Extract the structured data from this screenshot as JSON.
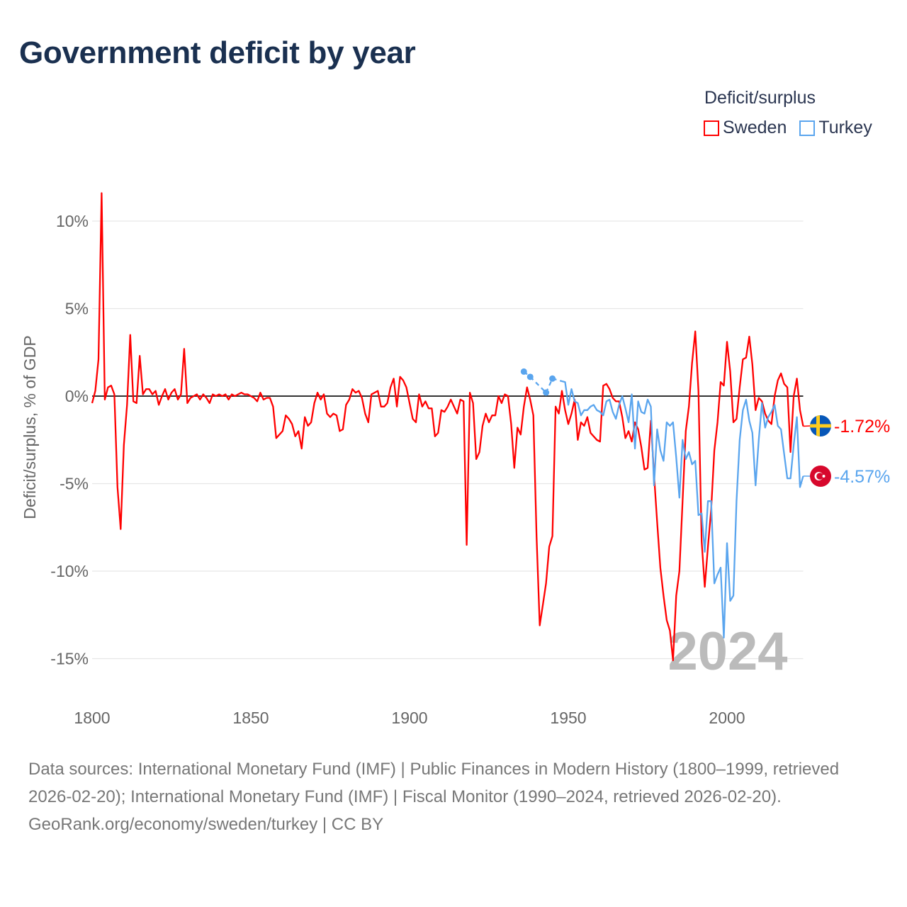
{
  "title": "Government deficit by year",
  "legend": {
    "title": "Deficit/surplus",
    "items": [
      {
        "name": "Sweden",
        "color": "#ff0000"
      },
      {
        "name": "Turkey",
        "color": "#5aa5ee"
      }
    ]
  },
  "footer": {
    "sources": "Data sources: International Monetary Fund (IMF) | Public Finances in Modern History (1800–1999, retrieved 2026-02-20); International Monetary Fund (IMF) | Fiscal Monitor (1990–2024, retrieved 2026-02-20).",
    "credit": "GeoRank.org/economy/sweden/turkey | CC BY"
  },
  "chart_data": {
    "type": "line",
    "title": "Government deficit by year",
    "xlabel": "",
    "ylabel": "Deficit/surplus, % of GDP",
    "xlim": [
      1800,
      2024
    ],
    "ylim": [
      -15,
      10
    ],
    "x_ticks": [
      1800,
      1850,
      1900,
      1950,
      2000
    ],
    "x_tick_labels": [
      "1800",
      "1850",
      "1900",
      "1950",
      "2000"
    ],
    "y_ticks": [
      10,
      5,
      0,
      -5,
      -10,
      -15
    ],
    "y_tick_labels": [
      "10%",
      "5%",
      "0%",
      "-5%",
      "-10%",
      "-15%"
    ],
    "grid": true,
    "legend_position": "top-right",
    "year_watermark": "2024",
    "series": [
      {
        "name": "Sweden",
        "color": "#ff0000",
        "start_year": 1800,
        "end_label": "-1.72%",
        "flag": "sweden-flag",
        "values": [
          -0.4,
          0.3,
          2.1,
          11.6,
          -0.2,
          0.5,
          0.6,
          0.1,
          -5.2,
          -7.6,
          -2.8,
          -0.5,
          3.5,
          -0.3,
          -0.4,
          2.3,
          0.1,
          0.4,
          0.4,
          0.1,
          0.3,
          -0.5,
          0,
          0.4,
          -0.2,
          0.2,
          0.4,
          -0.2,
          0.1,
          2.7,
          -0.4,
          -0.1,
          0,
          0.1,
          -0.2,
          0.1,
          -0.1,
          -0.4,
          0.1,
          0,
          0.1,
          0,
          0.1,
          -0.2,
          0.1,
          0,
          0.1,
          0.2,
          0.1,
          0.1,
          0,
          -0.1,
          -0.3,
          0.2,
          -0.2,
          -0.1,
          -0.1,
          -0.6,
          -2.4,
          -2.2,
          -2.0,
          -1.1,
          -1.3,
          -1.6,
          -2.3,
          -2.0,
          -3.0,
          -1.2,
          -1.7,
          -1.5,
          -0.4,
          0.2,
          -0.2,
          0.1,
          -1.0,
          -1.2,
          -1.0,
          -1.1,
          -2.0,
          -1.9,
          -0.5,
          -0.2,
          0.4,
          0.2,
          0.3,
          -0.1,
          -1.0,
          -1.5,
          0.1,
          0.2,
          0.3,
          -0.6,
          -0.6,
          -0.4,
          0.5,
          1.0,
          -0.6,
          1.1,
          0.9,
          0.5,
          -0.4,
          -1.3,
          -1.5,
          0.1,
          -0.6,
          -0.3,
          -0.7,
          -0.7,
          -2.3,
          -2.1,
          -0.8,
          -0.9,
          -0.6,
          -0.2,
          -0.6,
          -1.0,
          -0.2,
          -0.3,
          -8.5,
          0.2,
          -0.4,
          -3.6,
          -3.2,
          -1.7,
          -1.0,
          -1.5,
          -1.1,
          -1.1,
          0,
          -0.4,
          0.1,
          0,
          -1.6,
          -4.1,
          -1.8,
          -2.2,
          -0.6,
          0.5,
          -0.2,
          -1.1,
          -8.0,
          -13.1,
          -11.9,
          -10.7,
          -8.6,
          -8.0,
          -0.6,
          -1.0,
          0.3,
          -0.8,
          -1.6,
          -1.0,
          -0.2,
          -2.5,
          -1.5,
          -1.7,
          -1.2,
          -2.1,
          -2.3,
          -2.5,
          -2.6,
          0.6,
          0.7,
          0.4,
          -0.1,
          -0.3,
          -0.3,
          -1.2,
          -2.4,
          -2.0,
          -2.6,
          -1.5,
          -1.9,
          -2.9,
          -4.2,
          -4.1,
          -1.4,
          -4.5,
          -7.2,
          -9.8,
          -11.4,
          -12.8,
          -13.4,
          -15.1,
          -11.4,
          -10.0,
          -6.0,
          -2.0,
          -0.6,
          1.9,
          3.7,
          0.3,
          -8.3,
          -10.9,
          -8.6,
          -6.5,
          -3.1,
          -1.5,
          0.8,
          0.6,
          3.1,
          1.4,
          -1.5,
          -1.3,
          0.5,
          2.1,
          2.2,
          3.4,
          1.8,
          -0.8,
          -0.1,
          -0.3,
          -1.0,
          -1.4,
          -1.6,
          0.0,
          0.9,
          1.3,
          0.7,
          0.5,
          -3.2,
          0.0,
          1.0,
          -0.8,
          -1.72
        ]
      },
      {
        "name": "Turkey",
        "color": "#5aa5ee",
        "end_label": "-4.57%",
        "flag": "turkey-flag",
        "points": [
          [
            1936,
            1.4
          ],
          [
            1938,
            1.1
          ],
          [
            1943,
            0.2
          ],
          [
            1945,
            1.0
          ],
          [
            1948,
            0.85
          ],
          [
            1949,
            0.8
          ],
          [
            1950,
            -0.5
          ],
          [
            1951,
            0.4
          ],
          [
            1952,
            -0.3
          ],
          [
            1953,
            -0.4
          ],
          [
            1954,
            -1.1
          ],
          [
            1955,
            -0.8
          ],
          [
            1956,
            -0.8
          ],
          [
            1957,
            -0.6
          ],
          [
            1958,
            -0.5
          ],
          [
            1959,
            -0.8
          ],
          [
            1960,
            -0.9
          ],
          [
            1961,
            -1.1
          ],
          [
            1962,
            -0.3
          ],
          [
            1963,
            -0.2
          ],
          [
            1964,
            -0.9
          ],
          [
            1965,
            -1.3
          ],
          [
            1966,
            -0.5
          ],
          [
            1967,
            0.0
          ],
          [
            1968,
            -0.7
          ],
          [
            1969,
            -1.5
          ],
          [
            1970,
            0.1
          ],
          [
            1971,
            -3.0
          ],
          [
            1972,
            -0.3
          ],
          [
            1973,
            -0.9
          ],
          [
            1974,
            -1.0
          ],
          [
            1975,
            -0.2
          ],
          [
            1976,
            -0.6
          ],
          [
            1977,
            -5.1
          ],
          [
            1978,
            -1.9
          ],
          [
            1979,
            -3.1
          ],
          [
            1980,
            -3.7
          ],
          [
            1981,
            -1.5
          ],
          [
            1982,
            -1.7
          ],
          [
            1983,
            -1.5
          ],
          [
            1984,
            -3.5
          ],
          [
            1985,
            -5.8
          ],
          [
            1986,
            -2.5
          ],
          [
            1987,
            -3.6
          ],
          [
            1988,
            -3.2
          ],
          [
            1989,
            -3.9
          ],
          [
            1990,
            -3.7
          ],
          [
            1991,
            -6.8
          ],
          [
            1992,
            -6.7
          ],
          [
            1993,
            -8.9
          ],
          [
            1994,
            -6.0
          ],
          [
            1995,
            -6.0
          ],
          [
            1996,
            -10.7
          ],
          [
            1997,
            -10.2
          ],
          [
            1998,
            -9.8
          ],
          [
            1999,
            -13.8
          ],
          [
            2000,
            -8.4
          ],
          [
            2001,
            -11.7
          ],
          [
            2002,
            -11.4
          ],
          [
            2003,
            -6.0
          ],
          [
            2004,
            -2.5
          ],
          [
            2005,
            -0.8
          ],
          [
            2006,
            -0.2
          ],
          [
            2007,
            -1.4
          ],
          [
            2008,
            -2.1
          ],
          [
            2009,
            -5.1
          ],
          [
            2010,
            -2.5
          ],
          [
            2011,
            -0.4
          ],
          [
            2012,
            -1.8
          ],
          [
            2013,
            -1.2
          ],
          [
            2014,
            -0.9
          ],
          [
            2015,
            -0.5
          ],
          [
            2016,
            -1.7
          ],
          [
            2017,
            -1.9
          ],
          [
            2018,
            -3.3
          ],
          [
            2019,
            -4.7
          ],
          [
            2020,
            -4.7
          ],
          [
            2021,
            -2.8
          ],
          [
            2022,
            -1.2
          ],
          [
            2023,
            -5.2
          ],
          [
            2024,
            -4.57
          ]
        ]
      }
    ]
  }
}
